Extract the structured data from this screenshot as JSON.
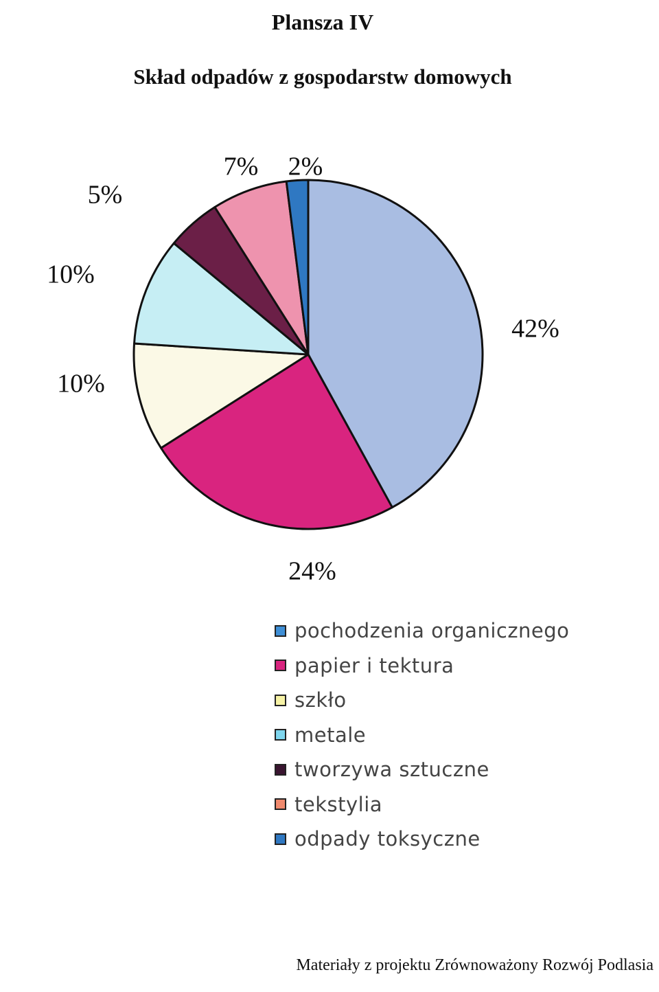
{
  "page": {
    "plansza": "Plansza IV",
    "footer": "Materiały z projektu Zrównoważony Rozwój Podlasia"
  },
  "chart_data": {
    "type": "pie",
    "title": "Skład odpadów z gospodarstw domowych",
    "slices": [
      {
        "name": "pochodzenia organicznego",
        "value": 42,
        "label": "42%",
        "color": "#a9bde2"
      },
      {
        "name": "papier i tektura",
        "value": 24,
        "label": "24%",
        "color": "#d9247f"
      },
      {
        "name": "szkło",
        "value": 10,
        "label": "10%",
        "color": "#fbf9e6"
      },
      {
        "name": "metale",
        "value": 10,
        "label": "10%",
        "color": "#c6eef4"
      },
      {
        "name": "tworzywa sztuczne",
        "value": 5,
        "label": "5%",
        "color": "#6b1f47"
      },
      {
        "name": "tekstylia",
        "value": 7,
        "label": "7%",
        "color": "#ee93ae"
      },
      {
        "name": "odpady toksyczne",
        "value": 2,
        "label": "2%",
        "color": "#2f78c2"
      }
    ],
    "legend": [
      {
        "label": "pochodzenia organicznego",
        "color": "#3f8fd6"
      },
      {
        "label": "papier i tektura",
        "color": "#d9247f"
      },
      {
        "label": "szkło",
        "color": "#f7f3a6"
      },
      {
        "label": "metale",
        "color": "#7fd6ee"
      },
      {
        "label": "tworzywa sztuczne",
        "color": "#3a1530"
      },
      {
        "label": "tekstylia",
        "color": "#f08a6e"
      },
      {
        "label": "odpady toksyczne",
        "color": "#2f78c2"
      }
    ],
    "legend_position": "bottom"
  }
}
